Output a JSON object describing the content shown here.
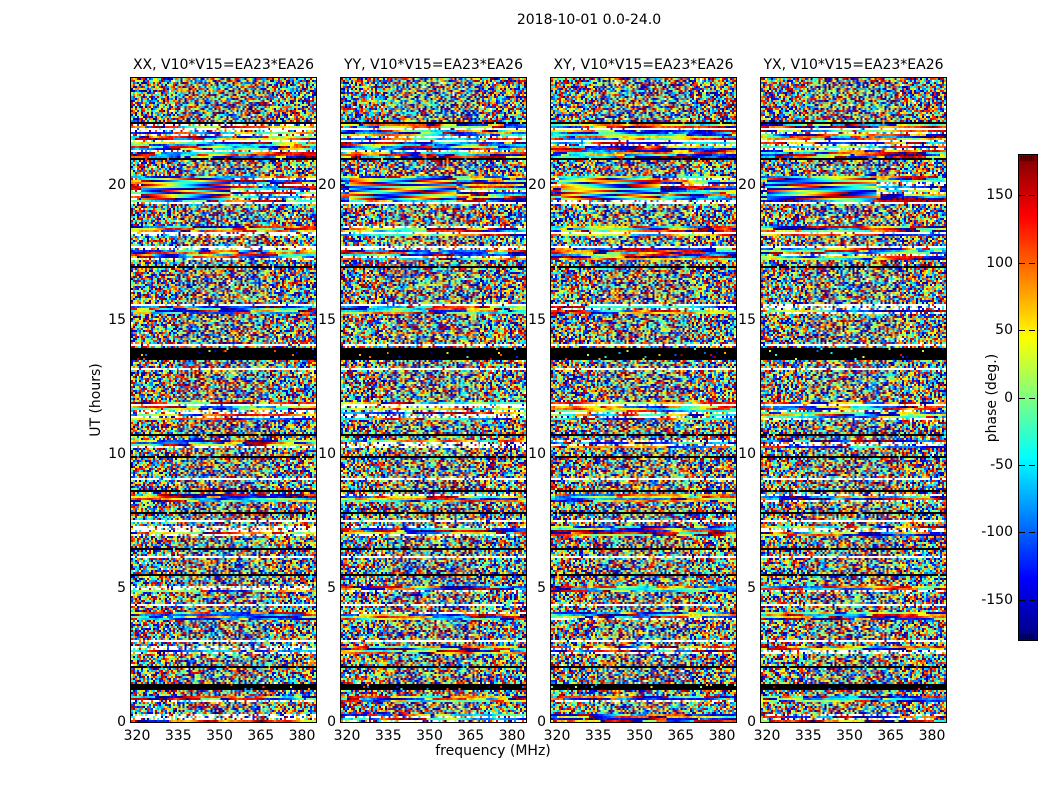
{
  "figure": {
    "title": "2018-10-01 0.0-24.0",
    "background_color": "#ffffff",
    "text_color": "#000000"
  },
  "chart_data": {
    "type": "heatmap",
    "title": "2018-10-01 0.0-24.0",
    "xlabel": "frequency (MHz)",
    "ylabel": "UT (hours)",
    "x_ticks": [
      320,
      335,
      350,
      365,
      380
    ],
    "x_range": [
      318,
      385
    ],
    "y_ticks": [
      0,
      5,
      10,
      15,
      20
    ],
    "y_range": [
      0,
      24
    ],
    "grid": false,
    "colormap": "jet",
    "value": "interferometric visibility phase",
    "panels": [
      {
        "label": "XX, V10*V15=EA23*EA26",
        "pol": "XX",
        "baseline": "V10*V15=EA23*EA26",
        "seed": 101
      },
      {
        "label": "YY, V10*V15=EA23*EA26",
        "pol": "YY",
        "baseline": "V10*V15=EA23*EA26",
        "seed": 202
      },
      {
        "label": "XY, V10*V15=EA23*EA26",
        "pol": "XY",
        "baseline": "V10*V15=EA23*EA26",
        "seed": 303
      },
      {
        "label": "YX, V10*V15=EA23*EA26",
        "pol": "YX",
        "baseline": "V10*V15=EA23*EA26",
        "seed": 404
      }
    ],
    "colorbar": {
      "label": "phase (deg.)",
      "ticks": [
        150,
        100,
        50,
        0,
        -50,
        -100,
        -150
      ],
      "range": [
        -180,
        180
      ]
    },
    "content_description": "Random uniform phase noise (-180..180 deg) vs frequency and UT time in each panel; horizontal flagged rows (black and white) and horizontally-smeared bands shared across all four polarization panels; a smooth phase-gradient (rainbow) band near UT 19.5-20.3 over the lower-frequency half.",
    "flags": [
      {
        "type": "black",
        "ut": 22.36
      },
      {
        "type": "white",
        "ut": 22.1
      },
      {
        "type": "streak",
        "ut_range": [
          21.1,
          22.3
        ]
      },
      {
        "type": "white",
        "ut": 21.7
      },
      {
        "type": "black",
        "ut": 21.05
      },
      {
        "type": "streak",
        "ut_range": [
          19.45,
          20.35
        ]
      },
      {
        "type": "smooth",
        "ut_range": [
          19.55,
          20.25
        ]
      },
      {
        "type": "white",
        "ut": 19.35
      },
      {
        "type": "streak",
        "ut_range": [
          18.15,
          18.45
        ]
      },
      {
        "type": "white",
        "ut": 18.25
      },
      {
        "type": "white",
        "ut": 17.75
      },
      {
        "type": "streak",
        "ut_range": [
          17.3,
          17.65
        ]
      },
      {
        "type": "black",
        "ut": 17.03
      },
      {
        "type": "white",
        "ut": 15.6
      },
      {
        "type": "streak",
        "ut_range": [
          15.3,
          15.5
        ]
      },
      {
        "type": "white",
        "ut": 14.05
      },
      {
        "type": "black_band",
        "ut_range": [
          13.55,
          13.95
        ]
      },
      {
        "type": "white",
        "ut": 13.2
      },
      {
        "type": "white",
        "ut": 11.85
      },
      {
        "type": "streak",
        "ut_range": [
          11.3,
          11.9
        ]
      },
      {
        "type": "black",
        "ut": 10.77
      },
      {
        "type": "streak",
        "ut_range": [
          10.3,
          10.5
        ]
      },
      {
        "type": "black",
        "ut": 9.95
      },
      {
        "type": "white",
        "ut": 9.1
      },
      {
        "type": "black",
        "ut": 8.65
      },
      {
        "type": "streak",
        "ut_range": [
          8.3,
          8.5
        ]
      },
      {
        "type": "black",
        "ut": 7.8
      },
      {
        "type": "white",
        "ut": 7.5
      },
      {
        "type": "streak",
        "ut_range": [
          7.0,
          7.3
        ]
      },
      {
        "type": "black",
        "ut": 6.52
      },
      {
        "type": "white",
        "ut": 6.19
      },
      {
        "type": "black",
        "ut": 5.48
      },
      {
        "type": "streak",
        "ut_range": [
          4.9,
          5.1
        ]
      },
      {
        "type": "white",
        "ut": 4.43
      },
      {
        "type": "streak",
        "ut_range": [
          3.9,
          4.1
        ]
      },
      {
        "type": "white",
        "ut": 3.06
      },
      {
        "type": "streak",
        "ut_range": [
          2.6,
          2.8
        ]
      },
      {
        "type": "black",
        "ut": 2.12
      },
      {
        "type": "black_band",
        "ut_range": [
          1.25,
          1.45
        ]
      },
      {
        "type": "streak",
        "ut_range": [
          0.8,
          1.0
        ]
      },
      {
        "type": "streak",
        "ut_range": [
          0.1,
          0.3
        ]
      }
    ]
  }
}
